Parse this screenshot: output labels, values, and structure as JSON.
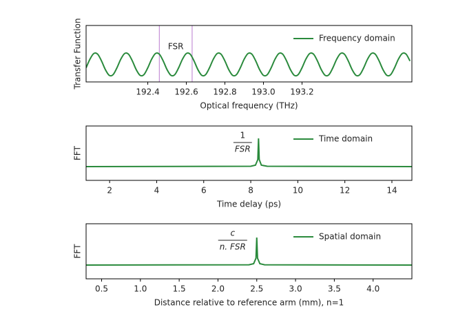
{
  "chart_data": [
    {
      "type": "line",
      "xlabel": "Optical frequency (THz)",
      "ylabel": "Transfer Function",
      "x": [
        192.08,
        192.1,
        192.12,
        192.14,
        192.16,
        192.18,
        192.2,
        192.22,
        192.24,
        192.26,
        192.28,
        192.3,
        192.32,
        192.34,
        192.36,
        192.38,
        192.4,
        192.42,
        192.44,
        192.46,
        192.48,
        192.5,
        192.52,
        192.54,
        192.56,
        192.58,
        192.6,
        192.62,
        192.64,
        192.66,
        192.68,
        192.7,
        192.72,
        192.74,
        192.76,
        192.78,
        192.8,
        192.82,
        192.84,
        192.86,
        192.88,
        192.9,
        192.92,
        192.94,
        192.96,
        192.98,
        193,
        193.02,
        193.04,
        193.06,
        193.08,
        193.1,
        193.12,
        193.14,
        193.16,
        193.18,
        193.2,
        193.22,
        193.24,
        193.26,
        193.28,
        193.3,
        193.32,
        193.34,
        193.36,
        193.38,
        193.4,
        193.42,
        193.44,
        193.46,
        193.48,
        193.5,
        193.52,
        193.54,
        193.56,
        193.58,
        193.6,
        193.62,
        193.64,
        193.66,
        193.68,
        193.7,
        193.72,
        193.74,
        193.76
      ],
      "series": [
        {
          "name": "Frequency domain",
          "color": "#2a8a3c",
          "values": [
            0.35,
            0.73,
            0.98,
            0.95,
            0.65,
            0.27,
            0.02,
            0.05,
            0.35,
            0.73,
            0.98,
            0.95,
            0.65,
            0.27,
            0.02,
            0.05,
            0.35,
            0.73,
            0.98,
            0.95,
            0.65,
            0.27,
            0.02,
            0.05,
            0.35,
            0.73,
            0.98,
            0.95,
            0.65,
            0.27,
            0.02,
            0.05,
            0.35,
            0.73,
            0.98,
            0.95,
            0.65,
            0.27,
            0.02,
            0.05,
            0.35,
            0.73,
            0.98,
            0.95,
            0.65,
            0.27,
            0.02,
            0.05,
            0.35,
            0.73,
            0.98,
            0.95,
            0.65,
            0.27,
            0.02,
            0.05,
            0.35,
            0.73,
            0.98,
            0.95,
            0.65,
            0.27,
            0.02,
            0.05,
            0.35,
            0.73,
            0.98,
            0.95,
            0.65,
            0.27,
            0.02,
            0.05,
            0.35,
            0.73,
            0.98,
            0.95,
            0.65,
            0.27,
            0.02,
            0.05,
            0.35,
            0.73,
            0.98,
            0.95,
            0.65
          ]
        }
      ],
      "xlim": [
        192.08,
        193.77
      ],
      "ylim": [
        -0.27,
        2.21
      ],
      "xticks": [
        192.4,
        192.6,
        192.8,
        {
          "value": 193,
          "label": "193.0"
        },
        193.2
      ],
      "legend": "upper right",
      "smooth": true,
      "vlines": {
        "values": [
          192.46,
          192.63
        ],
        "color": "#c58fd6"
      },
      "annotation": "FSR"
    },
    {
      "type": "line",
      "xlabel": "Time delay (ps)",
      "ylabel": "FFT",
      "x": [
        1,
        8.0,
        8.2,
        8.3,
        8.33,
        8.36,
        8.45,
        8.7,
        14.85
      ],
      "series": [
        {
          "name": "Time domain",
          "color": "#2a8a3c",
          "values": [
            0,
            0.01,
            0.05,
            0.25,
            1,
            0.25,
            0.05,
            0.01,
            0
          ]
        }
      ],
      "xlim": [
        1,
        14.85
      ],
      "ylim": [
        -0.49,
        1.44
      ],
      "xticks": [
        2,
        4,
        6,
        8,
        10,
        12,
        14
      ],
      "legend": "upper right",
      "smooth": false,
      "annotation": {
        "numerator": "1",
        "denominator": "FSR"
      }
    },
    {
      "type": "line",
      "xlabel": "Distance relative to reference arm (mm), n=1",
      "ylabel": "FFT",
      "x": [
        0.3,
        2.4,
        2.46,
        2.49,
        2.5,
        2.51,
        2.54,
        2.6,
        4.5
      ],
      "series": [
        {
          "name": "Spatial domain",
          "color": "#2a8a3c",
          "values": [
            0,
            0.01,
            0.05,
            0.25,
            1,
            0.25,
            0.05,
            0.01,
            0
          ]
        }
      ],
      "xlim": [
        0.3,
        4.5
      ],
      "ylim": [
        -0.5,
        1.5
      ],
      "xticks": [
        0.5,
        {
          "value": 1,
          "label": "1.0"
        },
        1.5,
        {
          "value": 2,
          "label": "2.0"
        },
        2.5,
        {
          "value": 3,
          "label": "3.0"
        },
        3.5,
        {
          "value": 4,
          "label": "4.0"
        }
      ],
      "legend": "upper right",
      "smooth": false,
      "annotation": {
        "numerator": "c",
        "denominator": "n. FSR"
      }
    }
  ]
}
